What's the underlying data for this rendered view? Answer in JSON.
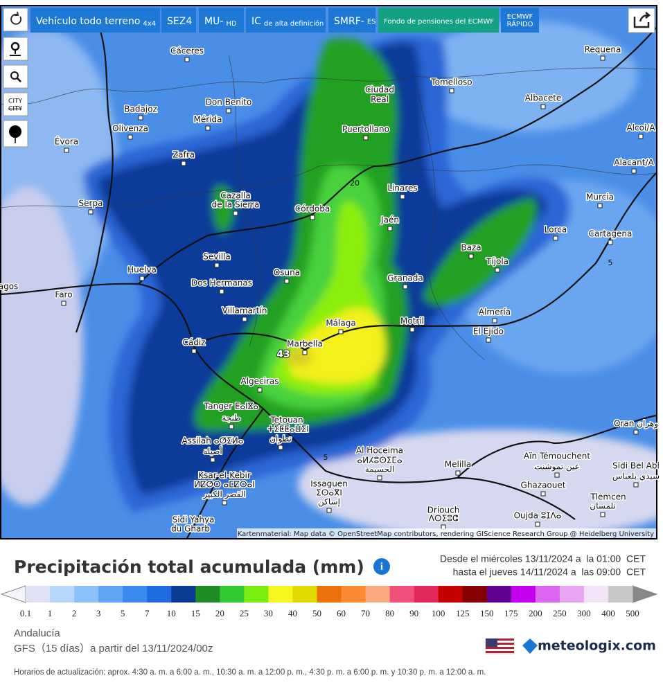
{
  "toolbar": {
    "buttons": [
      {
        "label": "Vehículo todo terreno",
        "sub": "4x4"
      },
      {
        "label": "SEZ4"
      },
      {
        "label": "MU-",
        "sub": "HD"
      },
      {
        "label": "IC",
        "sub": "de alta definición"
      },
      {
        "label": "SMRF-",
        "sub": "ES"
      },
      {
        "label": "Fondo de pensiones del ECMWF"
      },
      {
        "label": "ECMWF",
        "sub": "RÁPIDO"
      }
    ],
    "city_button": "CITY"
  },
  "map": {
    "place_labels": [
      "Cáceres",
      "Badajoz",
      "Don Benito",
      "Mérida",
      "Olivenza",
      "Évora",
      "Zafra",
      "Ciudad",
      "Real",
      "Puertollano",
      "Tomelloso",
      "Albacete",
      "Requena",
      "Alcoi/A",
      "Alacant/A",
      "Murcia",
      "Cartagena",
      "Lorca",
      "Linares",
      "Jaén",
      "Córdoba",
      "Cazalla",
      "de la Sierra",
      "Serpa",
      "Sevilla",
      "Huelva",
      "Osuna",
      "Dos Hermanas",
      "Faro",
      "Baza",
      "Tíjola",
      "Granada",
      "Almería",
      "El Ejido",
      "Motril",
      "Villamartín",
      "Málaga",
      "Cádiz",
      "Marbella",
      "Algeciras",
      "Tanger ⵟⴰⵏⴵⴰ",
      "طنجة",
      "Tetouan",
      "ⵜⵉⵟⵟⴰⵡⵉⵏ",
      "تطوان",
      "Assilah ⴰⵚⵉⵍⴰ",
      "أصيلة",
      "Al Hoceima",
      "ⴰⵍⵃⵓⵙⵉⵎⴰ",
      "الحسيمة",
      "Melilla",
      "Ksar-el-Kebir",
      "ⵍⵇⵚⵔ ⴰⵎⵇⵔⴰⵏ",
      "القصر الكبير",
      "Issaguen",
      "ⵉⵙⴰⴳⵏ",
      "إساكن",
      "Driouch",
      "ⴷⵔⵉⵓⵛ",
      "Sidi Yahya",
      "du Gharb",
      "Oujda ⵓⵊⴷⴰ",
      "Ghazaouet",
      "Aïn Témouchent",
      "عين تموشنت",
      "Sidi Bel Abl",
      "سيدي بلعباس",
      "Tlemcen",
      "تلمسان",
      "Oran وهران",
      "agos"
    ],
    "contour_labels": [
      "20",
      "5",
      "5"
    ],
    "max_label": "43",
    "attribution": "Kartenmaterial: Map data © OpenStreetMap contributors, rendering GIScience Research Group @ Heidelberg University"
  },
  "header": {
    "title": "Precipitación total acumulada (mm)",
    "period_from": "Desde el miércoles 13/11/2024 a  la 01:00  CET",
    "period_to": "hasta el jueves 14/11/2024 a  las 09:00  CET"
  },
  "legend": {
    "ticks": [
      0.1,
      1,
      2,
      3,
      5,
      7,
      10,
      15,
      20,
      25,
      30,
      40,
      50,
      60,
      70,
      80,
      90,
      100,
      125,
      150,
      175,
      200,
      250,
      300,
      400,
      500
    ],
    "colors": [
      "#e2e2f6",
      "#b6d6fc",
      "#8cc0fa",
      "#5ea6f4",
      "#3a8af0",
      "#1f6ce2",
      "#0b3a92",
      "#1e8c22",
      "#32c832",
      "#78ee10",
      "#f6f61e",
      "#e2da00",
      "#ee7008",
      "#fc8a34",
      "#fcaa80",
      "#f2507c",
      "#e4285c",
      "#c40000",
      "#860000",
      "#620096",
      "#c400f0",
      "#dc66f2",
      "#e8a4f2",
      "#f4e2f8",
      "#c8c8c8"
    ]
  },
  "info": {
    "region": "Andalucía",
    "model": "GFS（15 días）a partir del 13/11/2024/00z",
    "brand": "meteologix.com",
    "update_note": "Horarios de actualización: aprox. 4:30 a. m. a 6:00 a. m., 10:30 a. m. a 12:00 p. m., 4:30 p. m. a 6:00 p. m. y 10:30 p. m. a 12:00 a. m."
  }
}
